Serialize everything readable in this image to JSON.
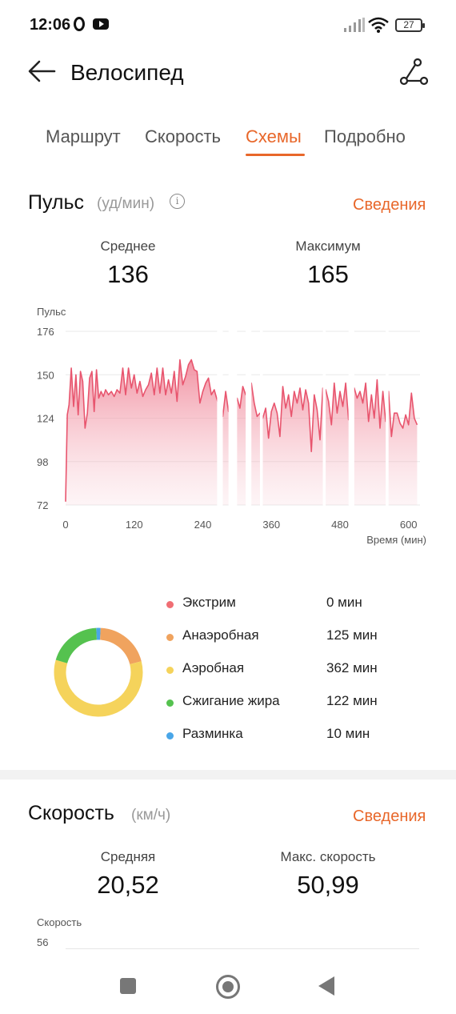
{
  "status_bar": {
    "time": "12:06",
    "battery": "27"
  },
  "header": {
    "title": "Велосипед"
  },
  "tabs": [
    {
      "label": "Маршрут",
      "active": false
    },
    {
      "label": "Скорость",
      "active": false
    },
    {
      "label": "Схемы",
      "active": true
    },
    {
      "label": "Подробно",
      "active": false
    }
  ],
  "pulse": {
    "title": "Пульс",
    "unit": "(уд/мин)",
    "details_label": "Сведения",
    "avg_label": "Среднее",
    "avg_value": "136",
    "max_label": "Максимум",
    "max_value": "165"
  },
  "chart_data": {
    "type": "area",
    "title": "",
    "ylabel": "Пульс",
    "xlabel": "Время (мин)",
    "ylim": [
      72,
      176
    ],
    "xlim": [
      0,
      620
    ],
    "yticks": [
      "176",
      "150",
      "124",
      "98",
      "72"
    ],
    "xticks": [
      "0",
      "120",
      "240",
      "360",
      "480",
      "600"
    ],
    "color": "#e8556e",
    "gaps_minutes": [
      [
        265,
        275
      ],
      [
        285,
        300
      ],
      [
        315,
        325
      ],
      [
        340,
        345
      ],
      [
        450,
        455
      ],
      [
        495,
        505
      ],
      [
        560,
        565
      ]
    ],
    "x": [
      0,
      3,
      6,
      10,
      14,
      18,
      22,
      26,
      30,
      34,
      38,
      42,
      46,
      50,
      54,
      58,
      62,
      66,
      70,
      75,
      80,
      85,
      90,
      95,
      100,
      105,
      110,
      115,
      120,
      125,
      130,
      135,
      140,
      145,
      150,
      155,
      160,
      165,
      170,
      175,
      180,
      185,
      190,
      195,
      200,
      205,
      210,
      215,
      220,
      225,
      230,
      235,
      240,
      245,
      250,
      255,
      260,
      265,
      275,
      280,
      285,
      300,
      305,
      310,
      315,
      325,
      330,
      335,
      340,
      345,
      350,
      355,
      360,
      365,
      370,
      375,
      380,
      385,
      390,
      395,
      400,
      405,
      410,
      415,
      420,
      425,
      430,
      435,
      440,
      445,
      450,
      455,
      460,
      465,
      470,
      475,
      480,
      485,
      490,
      495,
      505,
      510,
      515,
      520,
      525,
      530,
      535,
      540,
      545,
      550,
      555,
      560,
      565,
      570,
      575,
      580,
      585,
      590,
      595,
      600,
      605,
      610,
      615
    ],
    "values": [
      74,
      126,
      132,
      154,
      131,
      150,
      126,
      152,
      146,
      118,
      127,
      148,
      152,
      128,
      153,
      136,
      140,
      137,
      141,
      138,
      140,
      137,
      141,
      139,
      154,
      138,
      154,
      142,
      150,
      139,
      146,
      137,
      141,
      144,
      151,
      138,
      154,
      139,
      154,
      138,
      147,
      139,
      152,
      134,
      159,
      144,
      149,
      156,
      159,
      153,
      152,
      133,
      140,
      145,
      148,
      138,
      141,
      135,
      125,
      140,
      128,
      136,
      130,
      143,
      138,
      145,
      133,
      125,
      127,
      124,
      130,
      112,
      128,
      133,
      127,
      113,
      143,
      130,
      138,
      125,
      140,
      133,
      142,
      129,
      141,
      133,
      104,
      138,
      129,
      111,
      142,
      141,
      134,
      120,
      145,
      127,
      140,
      131,
      145,
      123,
      142,
      136,
      140,
      133,
      145,
      122,
      138,
      124,
      147,
      118,
      140,
      122,
      140,
      113,
      127,
      127,
      121,
      118,
      126,
      120,
      139,
      124,
      120
    ]
  },
  "zones": [
    {
      "name": "Экстрим",
      "value": "0 мин",
      "color": "#f06e74",
      "minutes": 0
    },
    {
      "name": "Анаэробная",
      "value": "125 мин",
      "color": "#f0a35e",
      "minutes": 125
    },
    {
      "name": "Аэробная",
      "value": "362 мин",
      "color": "#f5d35b",
      "minutes": 362
    },
    {
      "name": "Сжигание жира",
      "value": "122 мин",
      "color": "#55c24f",
      "minutes": 122
    },
    {
      "name": "Разминка",
      "value": "10 мин",
      "color": "#4aa6e8",
      "minutes": 10
    }
  ],
  "speed": {
    "title": "Скорость",
    "unit": "(км/ч)",
    "details_label": "Сведения",
    "avg_label": "Средняя",
    "avg_value": "20,52",
    "max_label": "Макс. скорость",
    "max_value": "50,99",
    "chart_ylabel": "Скорость",
    "chart_top_tick": "56"
  }
}
